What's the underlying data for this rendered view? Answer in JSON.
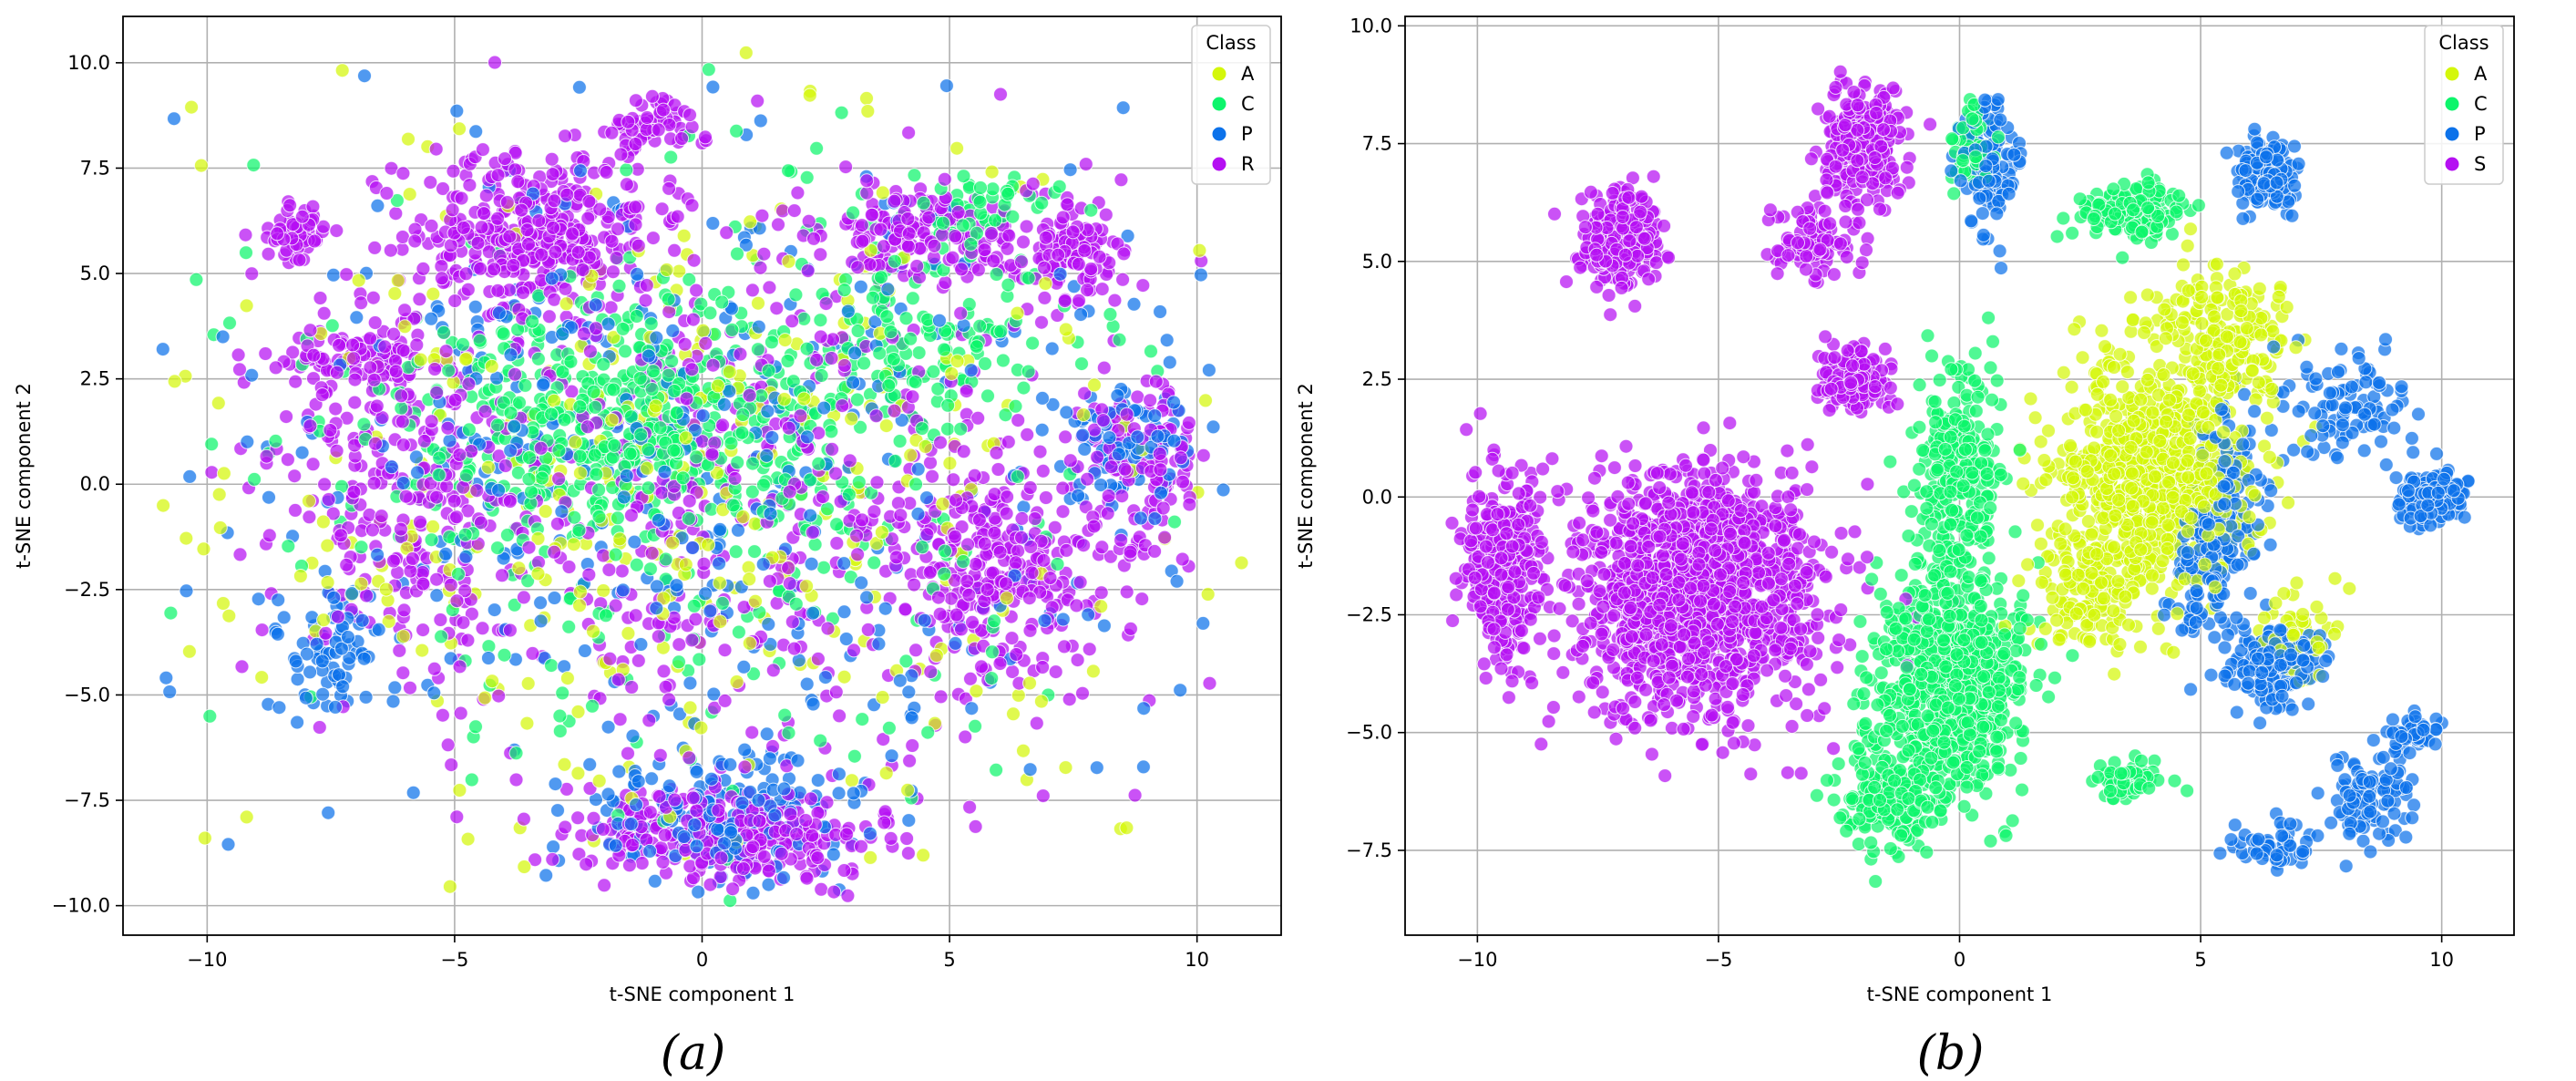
{
  "chart_data": [
    {
      "type": "scatter",
      "caption": "(a)",
      "xlabel": "t-SNE component 1",
      "ylabel": "t-SNE component 2",
      "xlim": [
        -11.7,
        11.7
      ],
      "ylim": [
        -10.7,
        11.1
      ],
      "xticks": [
        -10,
        -5,
        0,
        5,
        10
      ],
      "xtick_labels": [
        "−10",
        "−5",
        "0",
        "5",
        "10"
      ],
      "yticks": [
        -10.0,
        -7.5,
        -5.0,
        -2.5,
        0.0,
        2.5,
        5.0,
        7.5,
        10.0
      ],
      "ytick_labels": [
        "−10.0",
        "−7.5",
        "−5.0",
        "−2.5",
        "0.0",
        "2.5",
        "5.0",
        "7.5",
        "10.0"
      ],
      "grid": true,
      "legend": {
        "title": "Class",
        "placement": "top-right"
      },
      "series": [
        {
          "name": "A",
          "color": "#d4f70a",
          "count": 380,
          "clusters": [
            [
              0,
              0,
              9.5,
              8.5,
              1
            ]
          ]
        },
        {
          "name": "C",
          "color": "#0df56b",
          "count": 900,
          "clusters": [
            [
              -1.5,
              1.5,
              4.5,
              3.0,
              3
            ],
            [
              4.5,
              3.5,
              3.0,
              2.0,
              1
            ],
            [
              0,
              0,
              9.0,
              8.0,
              2
            ],
            [
              5.5,
              6.5,
              2.0,
              1.0,
              0.5
            ]
          ]
        },
        {
          "name": "P",
          "color": "#0c72ea",
          "count": 800,
          "clusters": [
            [
              0,
              0,
              9.5,
              8.5,
              3
            ],
            [
              0.5,
              -8.0,
              2.5,
              1.5,
              1
            ],
            [
              8.5,
              1.0,
              1.5,
              1.5,
              0.5
            ],
            [
              -7.5,
              -4.0,
              1.0,
              1.5,
              0.4
            ]
          ]
        },
        {
          "name": "R",
          "color": "#b50ff2",
          "count": 2300,
          "clusters": [
            [
              -3.5,
              6.0,
              2.5,
              1.8,
              1.2
            ],
            [
              0.5,
              -8.3,
              3.0,
              1.1,
              1.2
            ],
            [
              6.0,
              -2.0,
              2.0,
              2.5,
              1.0
            ],
            [
              -6.0,
              0.0,
              2.5,
              4.5,
              1.0
            ],
            [
              0,
              0,
              8.5,
              7.5,
              2.5
            ],
            [
              4.5,
              6.0,
              2.0,
              1.2,
              0.6
            ],
            [
              9.0,
              0.5,
              1.2,
              2.0,
              0.5
            ],
            [
              -8.2,
              6.0,
              0.6,
              0.6,
              0.25
            ],
            [
              -7.0,
              3.0,
              1.5,
              0.7,
              0.3
            ],
            [
              -1.0,
              8.5,
              1.0,
              0.6,
              0.3
            ],
            [
              7.5,
              5.5,
              1.0,
              1.2,
              0.4
            ]
          ]
        }
      ]
    },
    {
      "type": "scatter",
      "caption": "(b)",
      "xlabel": "t-SNE component 1",
      "ylabel": "t-SNE component 2",
      "xlim": [
        -11.5,
        11.5
      ],
      "ylim": [
        -9.3,
        10.2
      ],
      "xticks": [
        -10,
        -5,
        0,
        5,
        10
      ],
      "xtick_labels": [
        "−10",
        "−5",
        "0",
        "5",
        "10"
      ],
      "yticks": [
        -7.5,
        -5.0,
        -2.5,
        0.0,
        2.5,
        5.0,
        7.5,
        10.0
      ],
      "ytick_labels": [
        "−7.5",
        "−5.0",
        "−2.5",
        "0.0",
        "2.5",
        "5.0",
        "7.5",
        "10.0"
      ],
      "grid": true,
      "legend": {
        "title": "Class",
        "placement": "top-right"
      },
      "series": [
        {
          "name": "A",
          "color": "#d4f70a",
          "count": 1150,
          "clusters": [
            [
              4.0,
              0.5,
              2.0,
              2.4,
              4
            ],
            [
              5.5,
              3.5,
              1.5,
              1.5,
              1.2
            ],
            [
              2.8,
              -2.0,
              1.2,
              1.2,
              0.8
            ],
            [
              7.0,
              -3.0,
              0.8,
              1.0,
              0.3
            ]
          ]
        },
        {
          "name": "C",
          "color": "#0df56b",
          "count": 1500,
          "clusters": [
            [
              -0.2,
              -4.0,
              1.5,
              2.5,
              4
            ],
            [
              0,
              0.5,
              0.9,
              2.5,
              1.5
            ],
            [
              3.5,
              6.0,
              1.0,
              0.6,
              0.8
            ],
            [
              -1.5,
              -6.5,
              1.2,
              1.0,
              0.8
            ],
            [
              3.5,
              -6.0,
              0.6,
              0.4,
              0.3
            ],
            [
              0.2,
              7.5,
              0.4,
              1.0,
              0.3
            ]
          ]
        },
        {
          "name": "P",
          "color": "#0c72ea",
          "count": 1100,
          "clusters": [
            [
              6.3,
              6.8,
              0.6,
              0.7,
              0.8
            ],
            [
              9.8,
              0,
              0.8,
              0.6,
              0.8
            ],
            [
              6.5,
              -3.5,
              0.9,
              0.9,
              0.8
            ],
            [
              0.7,
              7.0,
              0.6,
              1.5,
              0.6
            ],
            [
              5.5,
              0.0,
              0.8,
              2.0,
              0.6
            ],
            [
              8.5,
              -6.3,
              0.9,
              1.0,
              0.5
            ],
            [
              8.0,
              2.0,
              1.5,
              1.2,
              0.5
            ],
            [
              6.5,
              -7.5,
              0.9,
              0.5,
              0.3
            ],
            [
              5.0,
              -2.0,
              0.6,
              1.5,
              0.4
            ],
            [
              9.5,
              -5.0,
              0.5,
              0.4,
              0.15
            ]
          ]
        },
        {
          "name": "S",
          "color": "#b50ff2",
          "count": 2500,
          "clusters": [
            [
              -5.5,
              -2.0,
              2.5,
              2.5,
              6
            ],
            [
              -7.0,
              5.5,
              0.8,
              1.0,
              1
            ],
            [
              -2.0,
              7.5,
              0.8,
              1.2,
              1
            ],
            [
              -2.2,
              2.5,
              0.7,
              0.7,
              0.7
            ],
            [
              -9.5,
              -1.5,
              0.8,
              2.0,
              1.2
            ],
            [
              -3.0,
              5.5,
              1.0,
              1.0,
              0.4
            ]
          ]
        }
      ]
    }
  ]
}
